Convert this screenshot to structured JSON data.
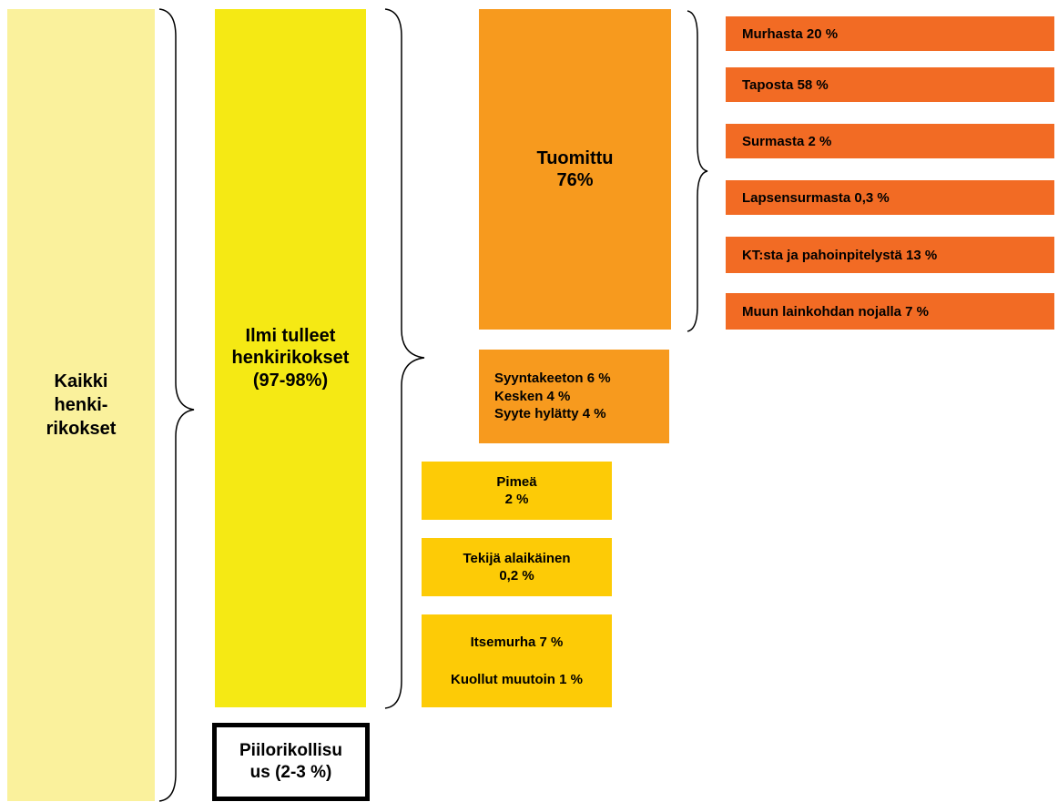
{
  "all_crimes": {
    "lines": [
      "Kaikki",
      "henki-",
      "rikokset"
    ],
    "color": "#faf19c"
  },
  "reported": {
    "lines": [
      "Ilmi tulleet",
      "henkirikokset",
      "(97-98%)"
    ],
    "color": "#f5e914"
  },
  "hidden": {
    "lines": [
      "Piilorikollisu",
      "us (2-3 %)"
    ]
  },
  "convicted": {
    "lines": [
      "Tuomittu",
      "76%"
    ],
    "color": "#f79a1e"
  },
  "not_convicted": {
    "lines": [
      "Syyntakeeton 6 %",
      "Kesken 4 %",
      "Syyte hylätty 4 %"
    ]
  },
  "dark": {
    "lines": [
      "Pimeä",
      "2 %"
    ],
    "color": "#fdcb06"
  },
  "minor": {
    "lines": [
      "Tekijä alaikäinen",
      "0,2 %"
    ]
  },
  "dead": {
    "lines": [
      "Itsemurha 7 %",
      "Kuollut muutoin 1 %"
    ]
  },
  "verdicts": {
    "color": "#f26b24",
    "items": [
      "Murhasta 20 %",
      "Taposta 58 %",
      "Surmasta 2 %",
      "Lapsensurmasta 0,3 %",
      "KT:sta ja pahoinpitelystä 13 %",
      "Muun lainkohdan nojalla 7 %"
    ]
  }
}
